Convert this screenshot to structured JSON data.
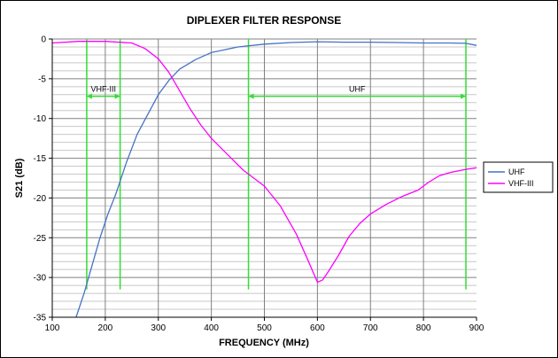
{
  "chart_data": {
    "type": "line",
    "title": "DIPLEXER FILTER RESPONSE",
    "xlabel": "FREQUENCY (MHz)",
    "ylabel": "S21 (dB)",
    "xlim": [
      100,
      900
    ],
    "ylim": [
      -35,
      0
    ],
    "xticks": [
      "100",
      "200",
      "300",
      "400",
      "500",
      "600",
      "700",
      "800",
      "900"
    ],
    "yticks": [
      "0",
      "-5",
      "-10",
      "-15",
      "-20",
      "-25",
      "-30",
      "-35"
    ],
    "grid": true,
    "legend_position": "right",
    "series": [
      {
        "name": "UHF",
        "color": "#4472C4",
        "x": [
          145,
          160,
          175,
          190,
          205,
          220,
          240,
          260,
          280,
          300,
          320,
          340,
          370,
          400,
          450,
          500,
          550,
          600,
          650,
          700,
          750,
          800,
          850,
          880,
          900
        ],
        "y": [
          -35,
          -32,
          -28.5,
          -25,
          -22,
          -19.5,
          -15.5,
          -12,
          -9.5,
          -7,
          -5.2,
          -3.8,
          -2.6,
          -1.7,
          -1.0,
          -0.65,
          -0.45,
          -0.35,
          -0.4,
          -0.4,
          -0.45,
          -0.5,
          -0.5,
          -0.55,
          -0.8
        ]
      },
      {
        "name": "VHF-III",
        "color": "#FF00FF",
        "x": [
          100,
          150,
          200,
          250,
          275,
          300,
          320,
          340,
          360,
          380,
          400,
          430,
          460,
          500,
          530,
          560,
          580,
          600,
          610,
          620,
          640,
          660,
          680,
          700,
          730,
          760,
          790,
          810,
          830,
          850,
          880,
          900
        ],
        "y": [
          -0.5,
          -0.3,
          -0.3,
          -0.5,
          -1.2,
          -2.5,
          -4.2,
          -6.5,
          -8.8,
          -10.8,
          -12.5,
          -14.5,
          -16.5,
          -18.5,
          -21,
          -24.5,
          -27.5,
          -30.6,
          -30.3,
          -29.3,
          -27.2,
          -24.8,
          -23.2,
          -22.0,
          -20.8,
          -19.8,
          -19.0,
          -18.0,
          -17.2,
          -16.8,
          -16.4,
          -16.2
        ]
      }
    ],
    "annotations": [
      {
        "label": "VHF-III",
        "x_from": 165,
        "x_to": 228,
        "y": -7.2
      },
      {
        "label": "UHF",
        "x_from": 470,
        "x_to": 880,
        "y": -7.2
      }
    ],
    "band_lines": {
      "color": "#33DD33",
      "x": [
        165,
        228,
        470,
        880
      ],
      "y_bottom": -31.5
    }
  }
}
